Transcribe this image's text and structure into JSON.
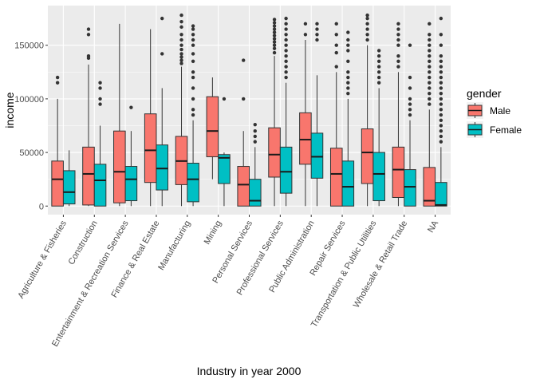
{
  "chart_data": {
    "type": "boxplot",
    "xlabel": "Industry in year 2000",
    "ylabel": "income",
    "ylim": [
      -8000,
      187000
    ],
    "yticks": [
      0,
      50000,
      100000,
      150000
    ],
    "ytick_labels": [
      "0",
      "50000",
      "100000",
      "150000"
    ],
    "grid": true,
    "legend": {
      "title": "gender",
      "placement": "right",
      "entries": [
        {
          "name": "Male",
          "color": "#F8766D"
        },
        {
          "name": "Female",
          "color": "#00BFC4"
        }
      ]
    },
    "categories": [
      "Agriculture & Fisheries",
      "Construction",
      "Entertainment & Recreation Services",
      "Finance & Real Estate",
      "Manufacturing",
      "Mining",
      "Personal Services",
      "Professional Services",
      "Public Administration",
      "Repair Services",
      "Transportation & Public Utilities",
      "Wholesale & Retail Trade",
      "NA"
    ],
    "series": [
      {
        "name": "Male",
        "color": "#F8766D",
        "boxes": [
          {
            "min": 0,
            "q1": 0,
            "median": 25000,
            "q3": 42000,
            "max": 100000,
            "outliers": [
              115000,
              120000
            ]
          },
          {
            "min": 0,
            "q1": 1000,
            "median": 30000,
            "q3": 55000,
            "max": 132000,
            "outliers": [
              138000,
              140000,
              160000,
              165000
            ]
          },
          {
            "min": 0,
            "q1": 3000,
            "median": 32000,
            "q3": 70000,
            "max": 170000,
            "outliers": []
          },
          {
            "min": 0,
            "q1": 22000,
            "median": 52000,
            "q3": 86000,
            "max": 165000,
            "outliers": []
          },
          {
            "min": 0,
            "q1": 20000,
            "median": 42000,
            "q3": 65000,
            "max": 130000,
            "outliers": [
              133000,
              136000,
              139000,
              142000,
              146000,
              150000,
              155000,
              160000,
              167000,
              172000,
              178000
            ]
          },
          {
            "min": 25000,
            "q1": 46000,
            "median": 70000,
            "q3": 102000,
            "max": 120000,
            "outliers": []
          },
          {
            "min": 0,
            "q1": 0,
            "median": 20000,
            "q3": 37000,
            "max": 70000,
            "outliers": [
              100000,
              136000
            ]
          },
          {
            "min": 0,
            "q1": 27000,
            "median": 48000,
            "q3": 73000,
            "max": 140000,
            "outliers": [
              143000,
              147000,
              150000,
              153000,
              156000,
              159000,
              162000,
              165000,
              168000,
              171000,
              174000
            ]
          },
          {
            "min": 0,
            "q1": 39000,
            "median": 62000,
            "q3": 87000,
            "max": 155000,
            "outliers": [
              160000,
              170000
            ]
          },
          {
            "min": 0,
            "q1": 0,
            "median": 30000,
            "q3": 54000,
            "max": 125000,
            "outliers": [
              130000,
              143000,
              150000,
              160000,
              170000
            ]
          },
          {
            "min": 0,
            "q1": 21000,
            "median": 50000,
            "q3": 72000,
            "max": 150000,
            "outliers": [
              155000,
              160000,
              165000,
              170000,
              175000,
              178000
            ]
          },
          {
            "min": 0,
            "q1": 8000,
            "median": 34000,
            "q3": 55000,
            "max": 125000,
            "outliers": [
              130000,
              135000,
              140000,
              150000,
              155000,
              160000,
              165000,
              170000
            ]
          },
          {
            "min": 0,
            "q1": 0,
            "median": 5000,
            "q3": 36000,
            "max": 90000,
            "outliers": [
              95000,
              100000,
              105000,
              110000,
              115000,
              120000,
              125000,
              130000,
              135000,
              140000,
              145000,
              150000,
              155000,
              160000,
              170000
            ]
          }
        ]
      },
      {
        "name": "Female",
        "color": "#00BFC4",
        "boxes": [
          {
            "min": 0,
            "q1": 2000,
            "median": 13000,
            "q3": 33000,
            "max": 52000,
            "outliers": []
          },
          {
            "min": 0,
            "q1": 0,
            "median": 24000,
            "q3": 39000,
            "max": 75000,
            "outliers": [
              95000,
              100000,
              110000,
              115000
            ]
          },
          {
            "min": 0,
            "q1": 5000,
            "median": 25000,
            "q3": 37000,
            "max": 70000,
            "outliers": [
              92000
            ]
          },
          {
            "min": 0,
            "q1": 15000,
            "median": 35000,
            "q3": 57000,
            "max": 110000,
            "outliers": [
              142000,
              175000
            ]
          },
          {
            "min": 0,
            "q1": 4000,
            "median": 25000,
            "q3": 40000,
            "max": 80000,
            "outliers": [
              85000,
              90000,
              100000,
              110000,
              120000,
              125000,
              135000,
              142000,
              150000,
              155000,
              160000,
              165000,
              168000
            ]
          },
          {
            "min": 0,
            "q1": 21000,
            "median": 45000,
            "q3": 48000,
            "max": 50000,
            "outliers": [
              100000
            ]
          },
          {
            "min": 0,
            "q1": 0,
            "median": 5000,
            "q3": 25000,
            "max": 55000,
            "outliers": [
              60000,
              65000,
              70000,
              76000
            ]
          },
          {
            "min": 0,
            "q1": 12000,
            "median": 32000,
            "q3": 55000,
            "max": 115000,
            "outliers": [
              120000,
              125000,
              130000,
              135000,
              140000,
              145000,
              150000,
              155000,
              160000,
              165000,
              170000,
              175000
            ]
          },
          {
            "min": 0,
            "q1": 26000,
            "median": 46000,
            "q3": 68000,
            "max": 122000,
            "outliers": [
              155000,
              160000,
              165000,
              170000
            ]
          },
          {
            "min": 0,
            "q1": 0,
            "median": 18000,
            "q3": 42000,
            "max": 100000,
            "outliers": [
              105000,
              110000,
              115000,
              120000,
              125000,
              135000,
              145000,
              150000,
              155000,
              162000
            ]
          },
          {
            "min": 0,
            "q1": 5000,
            "median": 30000,
            "q3": 50000,
            "max": 110000,
            "outliers": [
              115000,
              120000,
              125000,
              130000,
              135000,
              140000,
              145000
            ]
          },
          {
            "min": 0,
            "q1": 0,
            "median": 18000,
            "q3": 34000,
            "max": 80000,
            "outliers": [
              85000,
              90000,
              95000,
              100000,
              110000,
              120000,
              150000
            ]
          },
          {
            "min": 0,
            "q1": 0,
            "median": 1000,
            "q3": 22000,
            "max": 55000,
            "outliers": [
              60000,
              65000,
              70000,
              75000,
              80000,
              85000,
              90000,
              95000,
              100000,
              105000,
              110000,
              115000,
              120000,
              125000,
              130000,
              135000,
              140000,
              150000,
              160000,
              175000
            ]
          }
        ]
      }
    ]
  }
}
